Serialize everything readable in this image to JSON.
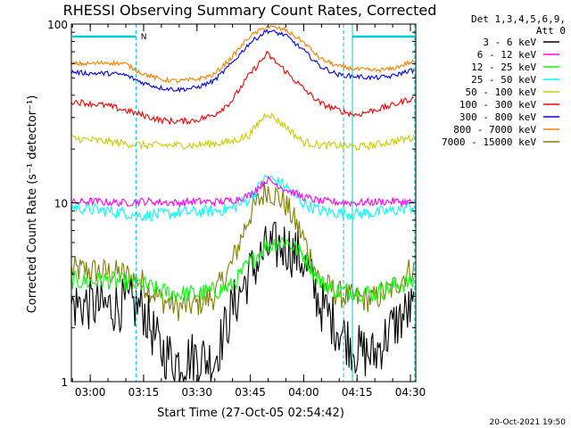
{
  "chart_data": {
    "type": "line",
    "title": "RHESSI Observing Summary Count Rates, Corrected",
    "xlabel": "Start Time (27-Oct-05 02:54:42)",
    "ylabel": "Corrected Count Rate (s⁻¹ detector⁻¹)",
    "y_scale": "log",
    "ylim": [
      1,
      100
    ],
    "xlim": [
      "02:54:42",
      "04:31:30"
    ],
    "x_tick_labels": [
      "03:00",
      "03:15",
      "03:30",
      "03:45",
      "04:00",
      "04:15",
      "04:30"
    ],
    "y_tick_labels": [
      "1",
      "10",
      "100"
    ],
    "legend_header": [
      "Det 1,3,4,5,6,9,",
      "Att 0"
    ],
    "legend_position": "right",
    "timestamp": "20-Oct-2021 19:50",
    "night_marker_label": "N",
    "x_unit": "minutes after 02:54:42",
    "x": [
      0,
      5,
      10,
      15,
      20,
      25,
      30,
      35,
      40,
      45,
      50,
      55,
      60,
      65,
      70,
      75,
      80,
      85,
      90,
      95
    ],
    "series": [
      {
        "name": "3 - 6 keV",
        "color": "#000000",
        "values": [
          2.7,
          2.7,
          2.6,
          2.7,
          2.6,
          1.5,
          1.3,
          1.4,
          1.3,
          2.5,
          4.0,
          5.5,
          5.8,
          4.8,
          2.7,
          2.0,
          1.5,
          1.4,
          2.0,
          2.5
        ]
      },
      {
        "name": "6 - 12 keV",
        "color": "#ff00ff",
        "values": [
          10.0,
          10.2,
          10.1,
          10.0,
          10.2,
          10.1,
          10.0,
          10.2,
          10.1,
          10.3,
          11.0,
          13.5,
          12.0,
          10.8,
          10.2,
          10.1,
          10.0,
          10.1,
          10.2,
          10.1
        ]
      },
      {
        "name": "12 - 25 keV",
        "color": "#00ff00",
        "values": [
          3.7,
          3.6,
          3.7,
          3.6,
          3.5,
          3.2,
          3.1,
          3.1,
          3.2,
          3.4,
          4.6,
          5.8,
          6.2,
          5.2,
          3.6,
          3.2,
          3.2,
          3.1,
          3.4,
          3.6
        ]
      },
      {
        "name": "25 - 50 keV",
        "color": "#00ffff",
        "values": [
          9.5,
          9.2,
          9.0,
          8.8,
          8.5,
          8.6,
          8.8,
          8.9,
          9.0,
          9.3,
          10.5,
          14.0,
          12.5,
          10.0,
          9.0,
          8.8,
          8.7,
          8.8,
          9.0,
          9.5
        ]
      },
      {
        "name": "50 - 100 keV",
        "color": "#cccc00",
        "values": [
          23,
          22.5,
          22,
          21.5,
          21,
          21,
          21,
          21,
          21.5,
          22,
          24,
          32,
          27,
          22,
          21,
          21,
          20.5,
          21,
          22,
          23
        ]
      },
      {
        "name": "100 - 300 keV",
        "color": "#ff0000",
        "values": [
          37,
          36,
          35,
          33,
          31,
          29,
          28.5,
          29,
          31,
          37,
          52,
          68,
          55,
          44,
          36,
          33,
          31,
          33,
          35,
          38
        ]
      },
      {
        "name": "300 - 800 keV",
        "color": "#0000ff",
        "values": [
          54,
          53,
          53,
          52,
          47,
          44,
          43,
          44,
          48,
          60,
          78,
          92,
          87,
          72,
          58,
          52,
          51,
          50,
          51,
          55
        ]
      },
      {
        "name": "800 - 7000 keV",
        "color": "#ff8000",
        "values": [
          60,
          60,
          61,
          60,
          53,
          49,
          48,
          49,
          52,
          65,
          85,
          97,
          93,
          80,
          64,
          58,
          56,
          55,
          56,
          61
        ]
      },
      {
        "name": "7000 - 15000 keV",
        "color": "#808000",
        "values": [
          4.2,
          4.2,
          4.1,
          4.0,
          3.6,
          2.9,
          2.6,
          2.7,
          3.0,
          4.5,
          8.5,
          12.0,
          10.0,
          6.5,
          3.6,
          3.1,
          2.9,
          2.9,
          3.3,
          4.2
        ]
      }
    ]
  }
}
